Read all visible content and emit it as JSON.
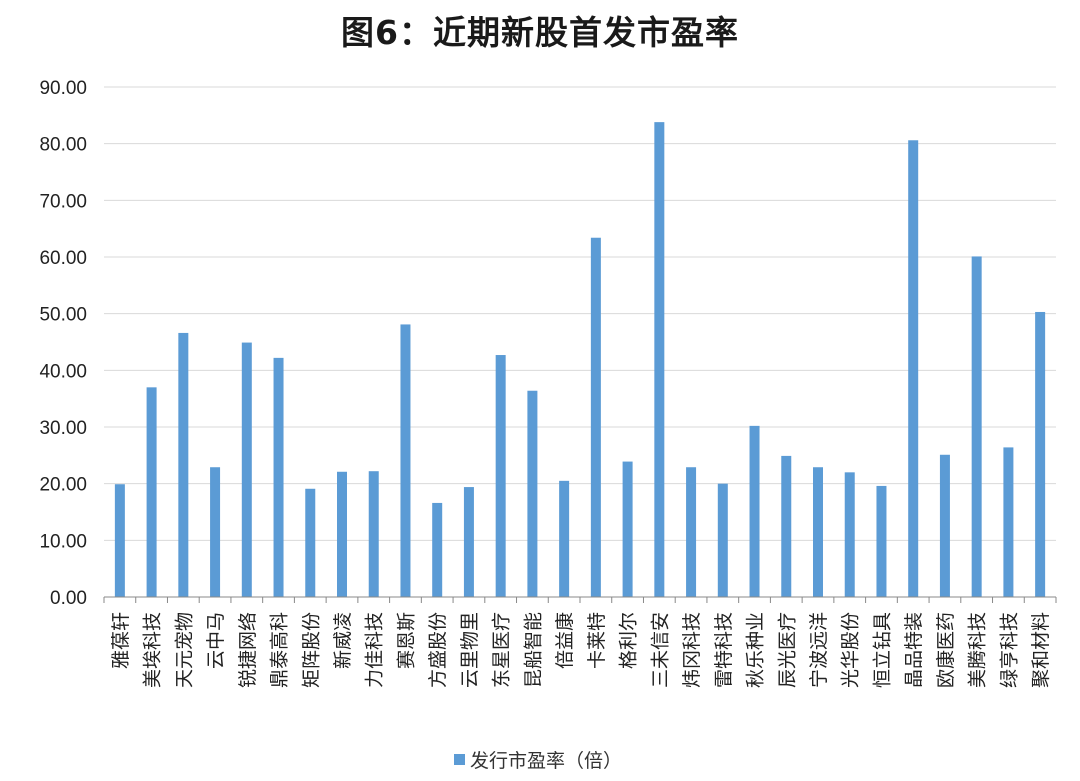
{
  "chart_data": {
    "type": "bar",
    "title": "图6：近期新股首发市盈率",
    "categories": [
      "雅葆轩",
      "美埃科技",
      "天元宠物",
      "云中马",
      "锐捷网络",
      "鼎泰高科",
      "矩阵股份",
      "新威凌",
      "力佳科技",
      "赛恩斯",
      "方盛股份",
      "云里物里",
      "东星医疗",
      "昆船智能",
      "倍益康",
      "卡莱特",
      "格利尔",
      "三未信安",
      "炜冈科技",
      "雷特科技",
      "秋乐种业",
      "辰光医疗",
      "宁波远洋",
      "光华股份",
      "恒立钻具",
      "晶品特装",
      "欧康医药",
      "美腾科技",
      "绿亨科技",
      "聚和材料"
    ],
    "series": [
      {
        "name": "发行市盈率（倍）",
        "values": [
          19.9,
          37.0,
          46.6,
          22.9,
          44.9,
          42.2,
          19.1,
          22.1,
          22.2,
          48.1,
          16.6,
          19.4,
          42.7,
          36.4,
          20.5,
          63.4,
          23.9,
          83.8,
          22.9,
          20.0,
          30.2,
          24.9,
          22.9,
          22.0,
          19.6,
          80.6,
          25.1,
          60.1,
          26.4,
          50.3
        ]
      }
    ],
    "yticks": [
      "0.00",
      "10.00",
      "20.00",
      "30.00",
      "40.00",
      "50.00",
      "60.00",
      "70.00",
      "80.00",
      "90.00"
    ],
    "ylim": [
      0,
      90
    ],
    "grid": true,
    "legend_position": "bottom",
    "colors": {
      "bar": "#5B9BD5",
      "grid": "#d9d9d9",
      "axis": "#888888"
    }
  }
}
